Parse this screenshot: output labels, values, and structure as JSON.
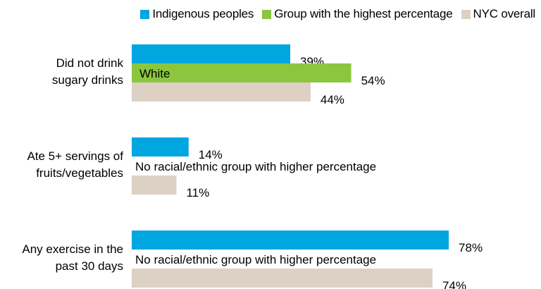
{
  "chart_data": {
    "type": "bar",
    "orientation": "horizontal",
    "categories": [
      "Did not drink sugary drinks",
      "Ate 5+ servings of fruits/vegetables",
      "Any exercise in the past 30 days"
    ],
    "category_lines": [
      [
        "Did not drink",
        "sugary drinks"
      ],
      [
        "Ate 5+ servings of",
        "fruits/vegetables"
      ],
      [
        "Any exercise in the",
        "past 30 days"
      ]
    ],
    "series": [
      {
        "name": "Indigenous peoples",
        "color": "#00a6e0",
        "values": [
          39,
          14,
          78
        ],
        "labels": [
          "39%",
          "14%",
          "78%"
        ]
      },
      {
        "name": "Group with the highest percentage",
        "color": "#8cc63f",
        "values": [
          54,
          null,
          null
        ],
        "labels": [
          "54%",
          "",
          ""
        ],
        "group_labels": [
          "White",
          "",
          ""
        ]
      },
      {
        "name": "NYC overall",
        "color": "#ddd0c5",
        "values": [
          44,
          11,
          74
        ],
        "labels": [
          "44%",
          "11%",
          "74%"
        ]
      }
    ],
    "notes": [
      "",
      "No racial/ethnic group with higher percentage",
      "No racial/ethnic group with higher percentage"
    ],
    "xlim": [
      0,
      100
    ],
    "legend_position": "top-right",
    "grid": false
  }
}
